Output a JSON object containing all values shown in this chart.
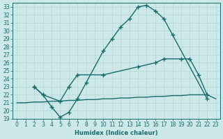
{
  "xlabel": "Humidex (Indice chaleur)",
  "ylabel": "",
  "bg_color": "#cce8e8",
  "line_color": "#1a6b6b",
  "grid_color": "#b8d8d8",
  "xlim": [
    -0.5,
    23.5
  ],
  "ylim": [
    19,
    33.5
  ],
  "xticks": [
    0,
    1,
    2,
    3,
    4,
    5,
    6,
    7,
    8,
    9,
    10,
    11,
    12,
    13,
    14,
    15,
    16,
    17,
    18,
    19,
    20,
    21,
    22,
    23
  ],
  "yticks": [
    19,
    20,
    21,
    22,
    23,
    24,
    25,
    26,
    27,
    28,
    29,
    30,
    31,
    32,
    33
  ],
  "line1_x": [
    0,
    1,
    2,
    3,
    4,
    5,
    6,
    7,
    8,
    9,
    10,
    11,
    12,
    13,
    14,
    15,
    16,
    17,
    18,
    19,
    20,
    21,
    22,
    23
  ],
  "line1_y": [
    21.0,
    21.0,
    21.1,
    21.1,
    21.2,
    21.2,
    21.3,
    21.3,
    21.4,
    21.4,
    21.5,
    21.5,
    21.6,
    21.6,
    21.7,
    21.7,
    21.8,
    21.8,
    21.9,
    21.9,
    22.0,
    22.0,
    22.0,
    21.5
  ],
  "line2_x": [
    2,
    3,
    4,
    5,
    6,
    7,
    8,
    10,
    11,
    12,
    13,
    14,
    15,
    16,
    17,
    18,
    22
  ],
  "line2_y": [
    23.0,
    22.0,
    20.5,
    19.2,
    19.8,
    21.5,
    23.5,
    27.5,
    29.0,
    30.5,
    31.5,
    33.0,
    33.2,
    32.5,
    31.5,
    29.5,
    21.5
  ],
  "line3_x": [
    2,
    3,
    5,
    6,
    7,
    10,
    14,
    16,
    17,
    19,
    20,
    21,
    22
  ],
  "line3_y": [
    23.0,
    22.0,
    21.2,
    23.0,
    24.5,
    24.5,
    25.5,
    26.0,
    26.5,
    26.5,
    26.5,
    24.5,
    22.0
  ],
  "marker": "+",
  "markersize": 4,
  "linewidth": 1.0,
  "tick_fontsize": 5.5
}
